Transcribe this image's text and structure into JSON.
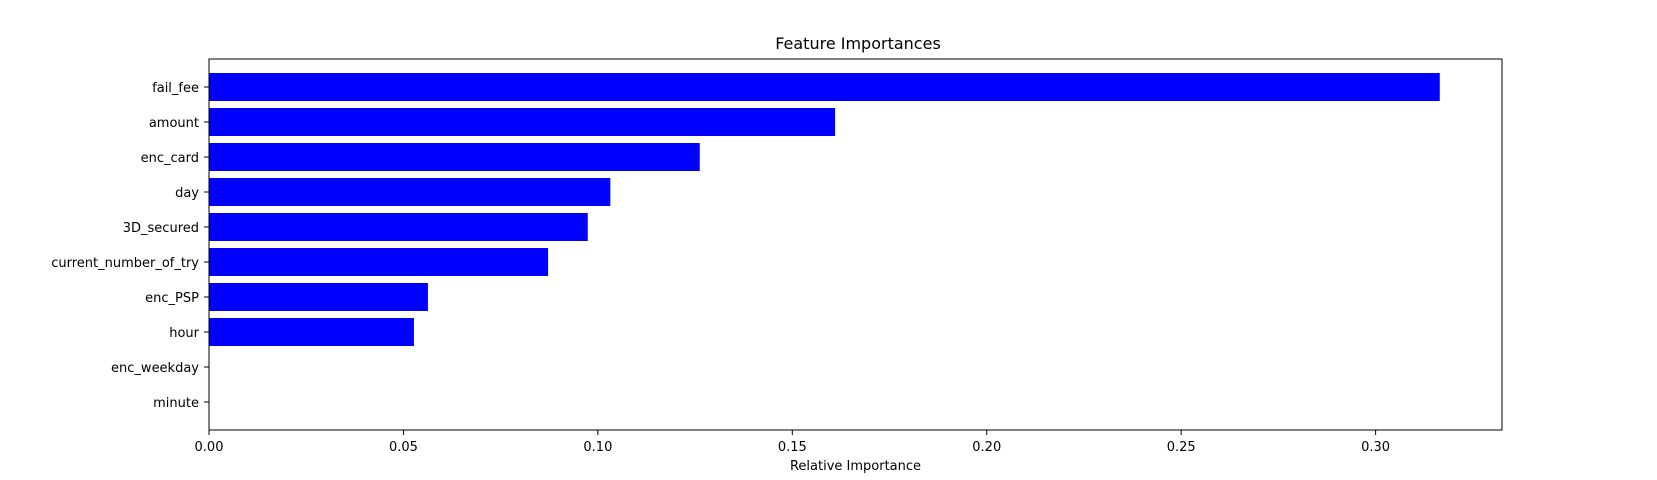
{
  "chart_data": {
    "type": "bar",
    "orientation": "horizontal",
    "title": "Feature Importances",
    "xlabel": "Relative Importance",
    "ylabel": "",
    "categories": [
      "fail_fee",
      "amount",
      "enc_card",
      "day",
      "3D_secured",
      "current_number_of_try",
      "enc_PSP",
      "hour",
      "enc_weekday",
      "minute"
    ],
    "values": [
      0.3165,
      0.161,
      0.1262,
      0.1032,
      0.0974,
      0.0872,
      0.0563,
      0.0527,
      0.0,
      0.0
    ],
    "xlim": [
      0.0,
      0.3325
    ],
    "xticks": [
      "0.00",
      "0.05",
      "0.10",
      "0.15",
      "0.20",
      "0.25",
      "0.30"
    ],
    "bar_color": "#0000ff",
    "grid": false,
    "legend": "none"
  }
}
